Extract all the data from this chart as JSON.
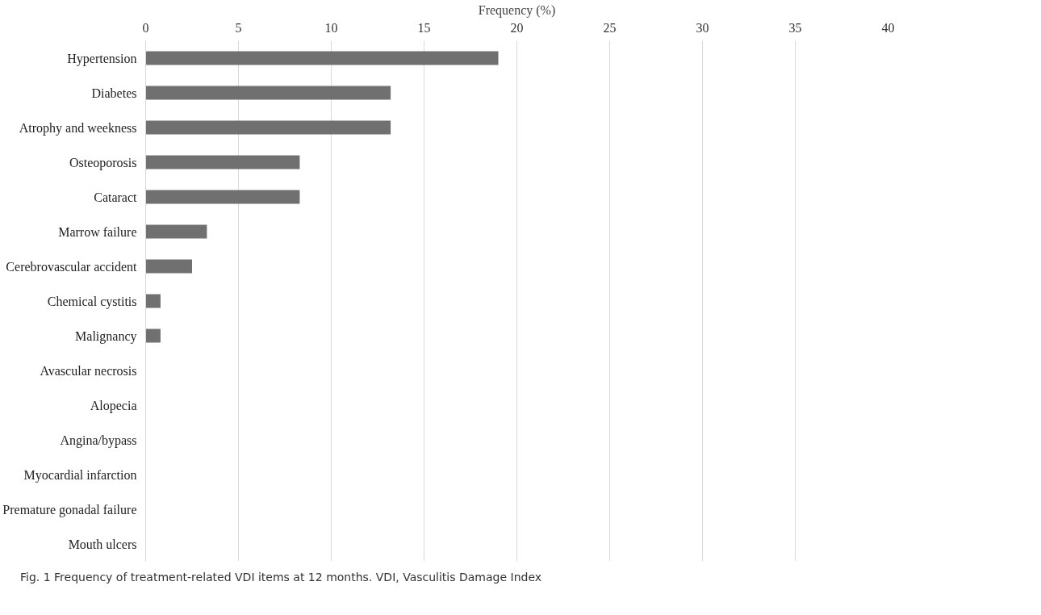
{
  "chart_data": {
    "type": "bar",
    "orientation": "horizontal",
    "xlabel": "Frequency (%)",
    "categories": [
      "Hypertension",
      "Diabetes",
      "Atrophy and weekness",
      "Osteoporosis",
      "Cataract",
      "Marrow failure",
      "Cerebrovascular accident",
      "Chemical cystitis",
      "Malignancy",
      "Avascular necrosis",
      "Alopecia",
      "Angina/bypass",
      "Myocardial infarction",
      "Premature gonadal failure",
      "Mouth ulcers"
    ],
    "values": [
      19.0,
      13.2,
      13.2,
      8.3,
      8.3,
      3.3,
      2.5,
      0.8,
      0.8,
      0,
      0,
      0,
      0,
      0,
      0
    ],
    "color": "#707070",
    "xlim": [
      0,
      40
    ],
    "xticks": [
      0,
      5,
      10,
      15,
      20,
      25,
      30,
      35,
      40
    ],
    "grid": "x",
    "annotations": [
      "Fig. 1 Frequency of treatment-related VDI items at 12 months. VDI, Vasculitis Damage Index"
    ]
  }
}
